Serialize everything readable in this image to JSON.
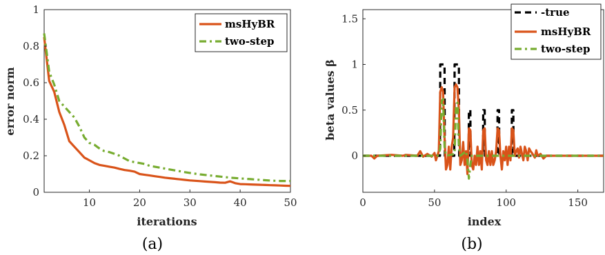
{
  "colors": {
    "orange": "#d95319",
    "green": "#77ac30",
    "black": "#000000",
    "axis": "#262626"
  },
  "chart_data": [
    {
      "type": "line",
      "caption": "(a)",
      "xlabel": "iterations",
      "ylabel": "error norm",
      "xlim": [
        1,
        50
      ],
      "ylim": [
        0,
        1
      ],
      "xticks": [
        10,
        20,
        30,
        40,
        50
      ],
      "yticks": [
        0,
        0.2,
        0.4,
        0.6,
        0.8,
        1
      ],
      "ytick_labels": [
        "0",
        "0.2",
        "0.4",
        "0.6",
        "0.8",
        "1"
      ],
      "legend_position": "top-right",
      "x": [
        1,
        2,
        3,
        4,
        5,
        6,
        7,
        8,
        9,
        10,
        11,
        12,
        13,
        14,
        15,
        16,
        17,
        18,
        19,
        20,
        21,
        22,
        23,
        24,
        25,
        26,
        27,
        28,
        29,
        30,
        31,
        32,
        33,
        34,
        35,
        36,
        37,
        38,
        39,
        40,
        41,
        42,
        43,
        44,
        45,
        46,
        47,
        48,
        49,
        50
      ],
      "series": [
        {
          "name": "msHyBR",
          "style": "solid",
          "color": "#d95319",
          "values": [
            0.85,
            0.61,
            0.55,
            0.44,
            0.37,
            0.28,
            0.25,
            0.22,
            0.19,
            0.175,
            0.16,
            0.15,
            0.145,
            0.14,
            0.135,
            0.128,
            0.122,
            0.118,
            0.113,
            0.1,
            0.096,
            0.092,
            0.088,
            0.084,
            0.08,
            0.077,
            0.074,
            0.071,
            0.068,
            0.065,
            0.063,
            0.061,
            0.059,
            0.057,
            0.055,
            0.053,
            0.052,
            0.06,
            0.05,
            0.045,
            0.044,
            0.043,
            0.042,
            0.041,
            0.04,
            0.039,
            0.038,
            0.037,
            0.036,
            0.035
          ]
        },
        {
          "name": "two-step",
          "style": "dashdot",
          "color": "#77ac30",
          "values": [
            0.87,
            0.66,
            0.59,
            0.5,
            0.47,
            0.44,
            0.41,
            0.36,
            0.3,
            0.27,
            0.26,
            0.24,
            0.225,
            0.22,
            0.21,
            0.2,
            0.185,
            0.17,
            0.165,
            0.16,
            0.155,
            0.145,
            0.14,
            0.135,
            0.13,
            0.125,
            0.12,
            0.115,
            0.11,
            0.106,
            0.102,
            0.098,
            0.095,
            0.092,
            0.089,
            0.086,
            0.083,
            0.08,
            0.078,
            0.076,
            0.074,
            0.072,
            0.07,
            0.068,
            0.066,
            0.064,
            0.063,
            0.062,
            0.062,
            0.062
          ]
        }
      ]
    },
    {
      "type": "line",
      "caption": "(b)",
      "xlabel": "index",
      "ylabel": "beta values β",
      "xlim": [
        0,
        168
      ],
      "ylim": [
        -0.4,
        1.6
      ],
      "xticks": [
        0,
        50,
        100,
        150
      ],
      "yticks": [
        0,
        0.5,
        1,
        1.5
      ],
      "ytick_labels": [
        "0",
        "0.5",
        "1",
        "1.5"
      ],
      "legend_position": "top-right",
      "series": [
        {
          "name": "true",
          "style": "dashed",
          "color": "#000000",
          "points": [
            [
              0,
              0
            ],
            [
              53.8,
              0
            ],
            [
              54,
              1
            ],
            [
              57,
              1
            ],
            [
              57.2,
              0
            ],
            [
              63.8,
              0
            ],
            [
              64,
              1
            ],
            [
              67,
              1
            ],
            [
              67.2,
              0
            ],
            [
              73.8,
              0
            ],
            [
              74,
              0.5
            ],
            [
              75,
              0.5
            ],
            [
              75.2,
              0
            ],
            [
              83.8,
              0
            ],
            [
              84,
              0.5
            ],
            [
              85,
              0.5
            ],
            [
              85.2,
              0
            ],
            [
              93.8,
              0
            ],
            [
              94,
              0.5
            ],
            [
              95,
              0.5
            ],
            [
              95.2,
              0
            ],
            [
              103.8,
              0
            ],
            [
              104,
              0.5
            ],
            [
              105,
              0.5
            ],
            [
              105.2,
              0
            ],
            [
              168,
              0
            ]
          ]
        },
        {
          "name": "msHyBR",
          "style": "solid",
          "color": "#d95319",
          "points": [
            [
              0,
              0
            ],
            [
              6,
              0
            ],
            [
              8,
              -0.03
            ],
            [
              10,
              0
            ],
            [
              20,
              0.01
            ],
            [
              28,
              0
            ],
            [
              30,
              0.01
            ],
            [
              38,
              0
            ],
            [
              40,
              0.05
            ],
            [
              42,
              -0.01
            ],
            [
              45,
              0.02
            ],
            [
              48,
              -0.01
            ],
            [
              50,
              0.03
            ],
            [
              51,
              -0.05
            ],
            [
              52,
              0
            ],
            [
              53,
              0.05
            ],
            [
              54,
              0.7
            ],
            [
              55,
              0.75
            ],
            [
              56,
              0.7
            ],
            [
              57,
              0.2
            ],
            [
              58,
              -0.15
            ],
            [
              59,
              -0.1
            ],
            [
              60,
              0.1
            ],
            [
              61,
              -0.15
            ],
            [
              62,
              0.1
            ],
            [
              63,
              0.2
            ],
            [
              64,
              0.75
            ],
            [
              65,
              0.78
            ],
            [
              66,
              0.75
            ],
            [
              67,
              0.5
            ],
            [
              68,
              -0.1
            ],
            [
              69,
              -0.05
            ],
            [
              70,
              0.15
            ],
            [
              71,
              -0.1
            ],
            [
              72,
              0.05
            ],
            [
              73,
              -0.2
            ],
            [
              74,
              0.3
            ],
            [
              75,
              0.28
            ],
            [
              76,
              -0.1
            ],
            [
              77,
              -0.15
            ],
            [
              78,
              0
            ],
            [
              79,
              -0.1
            ],
            [
              80,
              0.1
            ],
            [
              81,
              -0.1
            ],
            [
              82,
              0.05
            ],
            [
              83,
              -0.15
            ],
            [
              84,
              0.28
            ],
            [
              85,
              0.3
            ],
            [
              86,
              -0.05
            ],
            [
              87,
              -0.1
            ],
            [
              88,
              0.05
            ],
            [
              89,
              -0.1
            ],
            [
              90,
              0.05
            ],
            [
              91,
              -0.1
            ],
            [
              92,
              -0.05
            ],
            [
              93,
              0.05
            ],
            [
              94,
              0.3
            ],
            [
              95,
              0.28
            ],
            [
              96,
              0
            ],
            [
              97,
              -0.15
            ],
            [
              98,
              0.05
            ],
            [
              99,
              -0.05
            ],
            [
              100,
              0.1
            ],
            [
              101,
              -0.1
            ],
            [
              102,
              0.1
            ],
            [
              103,
              -0.05
            ],
            [
              104,
              0.3
            ],
            [
              105,
              0.28
            ],
            [
              106,
              0
            ],
            [
              107,
              0.05
            ],
            [
              108,
              0.08
            ],
            [
              109,
              -0.02
            ],
            [
              110,
              0.1
            ],
            [
              111,
              0.02
            ],
            [
              112,
              -0.05
            ],
            [
              113,
              0.1
            ],
            [
              114,
              0.05
            ],
            [
              115,
              -0.05
            ],
            [
              116,
              0.08
            ],
            [
              117,
              0.05
            ],
            [
              118,
              0.03
            ],
            [
              120,
              -0.02
            ],
            [
              121,
              0.06
            ],
            [
              122,
              0
            ],
            [
              124,
              0.02
            ],
            [
              126,
              -0.03
            ],
            [
              128,
              0
            ],
            [
              168,
              0
            ]
          ]
        },
        {
          "name": "two-step",
          "style": "dashdot",
          "color": "#77ac30",
          "points": [
            [
              0,
              0
            ],
            [
              52,
              0
            ],
            [
              53,
              0.02
            ],
            [
              54,
              0.08
            ],
            [
              55,
              0.6
            ],
            [
              56,
              0.62
            ],
            [
              57,
              0.1
            ],
            [
              58,
              0
            ],
            [
              64,
              0.02
            ],
            [
              65,
              0.55
            ],
            [
              66,
              0.58
            ],
            [
              67,
              0.1
            ],
            [
              68,
              0
            ],
            [
              72,
              0.05
            ],
            [
              73,
              -0.05
            ],
            [
              74,
              -0.25
            ],
            [
              75,
              -0.1
            ],
            [
              76,
              0
            ],
            [
              168,
              0
            ]
          ]
        }
      ]
    }
  ]
}
